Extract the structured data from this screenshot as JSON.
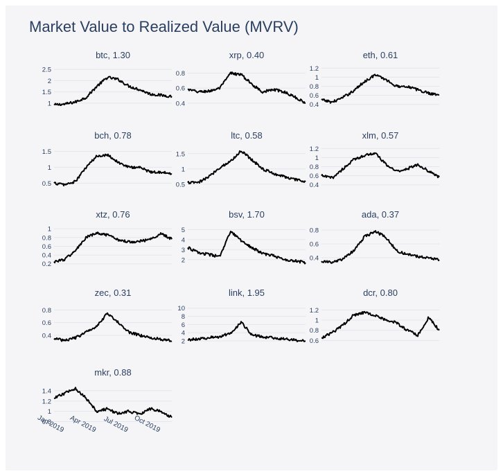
{
  "title": "Market Value to Realized Value (MVRV)",
  "colors": {
    "line": "#000000",
    "text": "#2a3f5f",
    "grid": "#e3e6ec",
    "panel_bg": "#f5f5f7"
  },
  "chart_data": [
    {
      "type": "line",
      "title": "btc, 1.30",
      "yticks": [
        "2.5",
        "2",
        "1.5",
        "1"
      ],
      "ytick_values": [
        2.5,
        2,
        1.5,
        1
      ],
      "ylim": [
        0.9,
        2.6
      ],
      "x": [
        "2019-01",
        "2019-02",
        "2019-03",
        "2019-04",
        "2019-05",
        "2019-06",
        "2019-07",
        "2019-08",
        "2019-09",
        "2019-10",
        "2019-11",
        "2019-12"
      ],
      "values": [
        0.92,
        0.95,
        1.05,
        1.25,
        1.75,
        2.15,
        2.05,
        1.75,
        1.6,
        1.4,
        1.35,
        1.3
      ],
      "grid": true
    },
    {
      "type": "line",
      "title": "xrp, 0.40",
      "yticks": [
        "0.8",
        "0.6",
        "0.4"
      ],
      "ytick_values": [
        0.8,
        0.6,
        0.4
      ],
      "ylim": [
        0.37,
        0.88
      ],
      "x": [
        "2019-01",
        "2019-02",
        "2019-03",
        "2019-04",
        "2019-05",
        "2019-06",
        "2019-07",
        "2019-08",
        "2019-09",
        "2019-10",
        "2019-11",
        "2019-12"
      ],
      "values": [
        0.58,
        0.55,
        0.56,
        0.6,
        0.8,
        0.78,
        0.65,
        0.55,
        0.58,
        0.55,
        0.48,
        0.4
      ],
      "grid": true
    },
    {
      "type": "line",
      "title": "eth, 0.61",
      "yticks": [
        "1.2",
        "1",
        "0.8",
        "0.6",
        "0.4"
      ],
      "ytick_values": [
        1.2,
        1,
        0.8,
        0.6,
        0.4
      ],
      "ylim": [
        0.38,
        1.22
      ],
      "x": [
        "2019-01",
        "2019-02",
        "2019-03",
        "2019-04",
        "2019-05",
        "2019-06",
        "2019-07",
        "2019-08",
        "2019-09",
        "2019-10",
        "2019-11",
        "2019-12"
      ],
      "values": [
        0.5,
        0.45,
        0.55,
        0.7,
        0.9,
        1.05,
        0.95,
        0.8,
        0.8,
        0.72,
        0.65,
        0.61
      ],
      "grid": true
    },
    {
      "type": "line",
      "title": "bch, 0.78",
      "yticks": [
        "1.5",
        "1",
        "0.5"
      ],
      "ytick_values": [
        1.5,
        1,
        0.5
      ],
      "ylim": [
        0.42,
        1.62
      ],
      "x": [
        "2019-01",
        "2019-02",
        "2019-03",
        "2019-04",
        "2019-05",
        "2019-06",
        "2019-07",
        "2019-08",
        "2019-09",
        "2019-10",
        "2019-11",
        "2019-12"
      ],
      "values": [
        0.5,
        0.45,
        0.55,
        1.0,
        1.35,
        1.4,
        1.15,
        1.0,
        1.0,
        0.85,
        0.85,
        0.78
      ],
      "grid": true
    },
    {
      "type": "line",
      "title": "ltc, 0.58",
      "yticks": [
        "1.5",
        "1",
        "0.5"
      ],
      "ytick_values": [
        1.5,
        1,
        0.5
      ],
      "ylim": [
        0.45,
        1.7
      ],
      "x": [
        "2019-01",
        "2019-02",
        "2019-03",
        "2019-04",
        "2019-05",
        "2019-06",
        "2019-07",
        "2019-08",
        "2019-09",
        "2019-10",
        "2019-11",
        "2019-12"
      ],
      "values": [
        0.55,
        0.55,
        0.75,
        1.05,
        1.25,
        1.6,
        1.3,
        1.0,
        0.85,
        0.75,
        0.65,
        0.58
      ],
      "grid": true
    },
    {
      "type": "line",
      "title": "xlm, 0.57",
      "yticks": [
        "1.2",
        "1",
        "0.8",
        "0.6",
        "0.4"
      ],
      "ytick_values": [
        1.2,
        1,
        0.8,
        0.6,
        0.4
      ],
      "ylim": [
        0.38,
        1.22
      ],
      "x": [
        "2019-01",
        "2019-02",
        "2019-03",
        "2019-04",
        "2019-05",
        "2019-06",
        "2019-07",
        "2019-08",
        "2019-09",
        "2019-10",
        "2019-11",
        "2019-12"
      ],
      "values": [
        0.6,
        0.55,
        0.75,
        0.95,
        1.05,
        1.1,
        0.85,
        0.7,
        0.75,
        0.85,
        0.7,
        0.57
      ],
      "grid": true
    },
    {
      "type": "line",
      "title": "xtz, 0.76",
      "yticks": [
        "1",
        "0.8",
        "0.6",
        "0.4",
        "0.2"
      ],
      "ytick_values": [
        1,
        0.8,
        0.6,
        0.4,
        0.2
      ],
      "ylim": [
        0.18,
        1.05
      ],
      "x": [
        "2019-01",
        "2019-02",
        "2019-03",
        "2019-04",
        "2019-05",
        "2019-06",
        "2019-07",
        "2019-08",
        "2019-09",
        "2019-10",
        "2019-11",
        "2019-12"
      ],
      "values": [
        0.25,
        0.3,
        0.5,
        0.8,
        0.9,
        0.85,
        0.75,
        0.7,
        0.72,
        0.75,
        0.9,
        0.76
      ],
      "grid": true
    },
    {
      "type": "line",
      "title": "bsv, 1.70",
      "yticks": [
        "5",
        "4",
        "3",
        "2"
      ],
      "ytick_values": [
        5,
        4,
        3,
        2
      ],
      "ylim": [
        1.5,
        5.3
      ],
      "x": [
        "2019-01",
        "2019-02",
        "2019-03",
        "2019-04",
        "2019-05",
        "2019-06",
        "2019-07",
        "2019-08",
        "2019-09",
        "2019-10",
        "2019-11",
        "2019-12"
      ],
      "values": [
        3.2,
        2.7,
        2.5,
        2.3,
        4.8,
        3.9,
        3.2,
        2.6,
        2.4,
        2.0,
        1.9,
        1.7
      ],
      "grid": true
    },
    {
      "type": "line",
      "title": "ada, 0.37",
      "yticks": [
        "0.8",
        "0.6",
        "0.4"
      ],
      "ytick_values": [
        0.8,
        0.6,
        0.4
      ],
      "ylim": [
        0.3,
        0.85
      ],
      "x": [
        "2019-01",
        "2019-02",
        "2019-03",
        "2019-04",
        "2019-05",
        "2019-06",
        "2019-07",
        "2019-08",
        "2019-09",
        "2019-10",
        "2019-11",
        "2019-12"
      ],
      "values": [
        0.35,
        0.33,
        0.38,
        0.5,
        0.7,
        0.78,
        0.7,
        0.5,
        0.45,
        0.42,
        0.4,
        0.37
      ],
      "grid": true
    },
    {
      "type": "line",
      "title": "zec, 0.31",
      "yticks": [
        "0.8",
        "0.6",
        "0.4"
      ],
      "ytick_values": [
        0.8,
        0.6,
        0.4
      ],
      "ylim": [
        0.28,
        0.88
      ],
      "x": [
        "2019-01",
        "2019-02",
        "2019-03",
        "2019-04",
        "2019-05",
        "2019-06",
        "2019-07",
        "2019-08",
        "2019-09",
        "2019-10",
        "2019-11",
        "2019-12"
      ],
      "values": [
        0.35,
        0.32,
        0.36,
        0.45,
        0.55,
        0.75,
        0.6,
        0.45,
        0.4,
        0.36,
        0.34,
        0.31
      ],
      "grid": true
    },
    {
      "type": "line",
      "title": "link, 1.95",
      "yticks": [
        "10",
        "8",
        "6",
        "4",
        "2"
      ],
      "ytick_values": [
        10,
        8,
        6,
        4,
        2
      ],
      "ylim": [
        1.5,
        10.8
      ],
      "x": [
        "2019-01",
        "2019-02",
        "2019-03",
        "2019-04",
        "2019-05",
        "2019-06",
        "2019-07",
        "2019-08",
        "2019-09",
        "2019-10",
        "2019-11",
        "2019-12"
      ],
      "values": [
        2.3,
        2.5,
        2.8,
        3.0,
        4.0,
        6.5,
        3.5,
        3.0,
        2.7,
        2.5,
        2.2,
        1.95
      ],
      "grid": true
    },
    {
      "type": "line",
      "title": "dcr, 0.80",
      "yticks": [
        "1.2",
        "1",
        "0.8",
        "0.6"
      ],
      "ytick_values": [
        1.2,
        1,
        0.8,
        0.6
      ],
      "ylim": [
        0.55,
        1.3
      ],
      "x": [
        "2019-01",
        "2019-02",
        "2019-03",
        "2019-04",
        "2019-05",
        "2019-06",
        "2019-07",
        "2019-08",
        "2019-09",
        "2019-10",
        "2019-11",
        "2019-12"
      ],
      "values": [
        0.65,
        0.75,
        0.9,
        1.1,
        1.15,
        1.1,
        1.0,
        0.95,
        0.8,
        0.7,
        1.05,
        0.8
      ],
      "grid": true
    },
    {
      "type": "line",
      "title": "mkr, 0.88",
      "yticks": [
        "1.4",
        "1.2",
        "1",
        "0.8"
      ],
      "ytick_values": [
        1.4,
        1.2,
        1,
        0.8
      ],
      "ylim": [
        0.78,
        1.52
      ],
      "x": [
        "2019-01",
        "2019-02",
        "2019-03",
        "2019-04",
        "2019-05",
        "2019-06",
        "2019-07",
        "2019-08",
        "2019-09",
        "2019-10",
        "2019-11",
        "2019-12"
      ],
      "values": [
        1.25,
        1.35,
        1.45,
        1.25,
        1.0,
        1.05,
        0.95,
        1.0,
        0.95,
        1.05,
        1.0,
        0.88
      ],
      "grid": true,
      "xticks": [
        "Jan 2019",
        "Apr 2019",
        "Jul 2019",
        "Oct 2019"
      ],
      "xtick_values": [
        "2019-01",
        "2019-04",
        "2019-07",
        "2019-10"
      ]
    }
  ]
}
